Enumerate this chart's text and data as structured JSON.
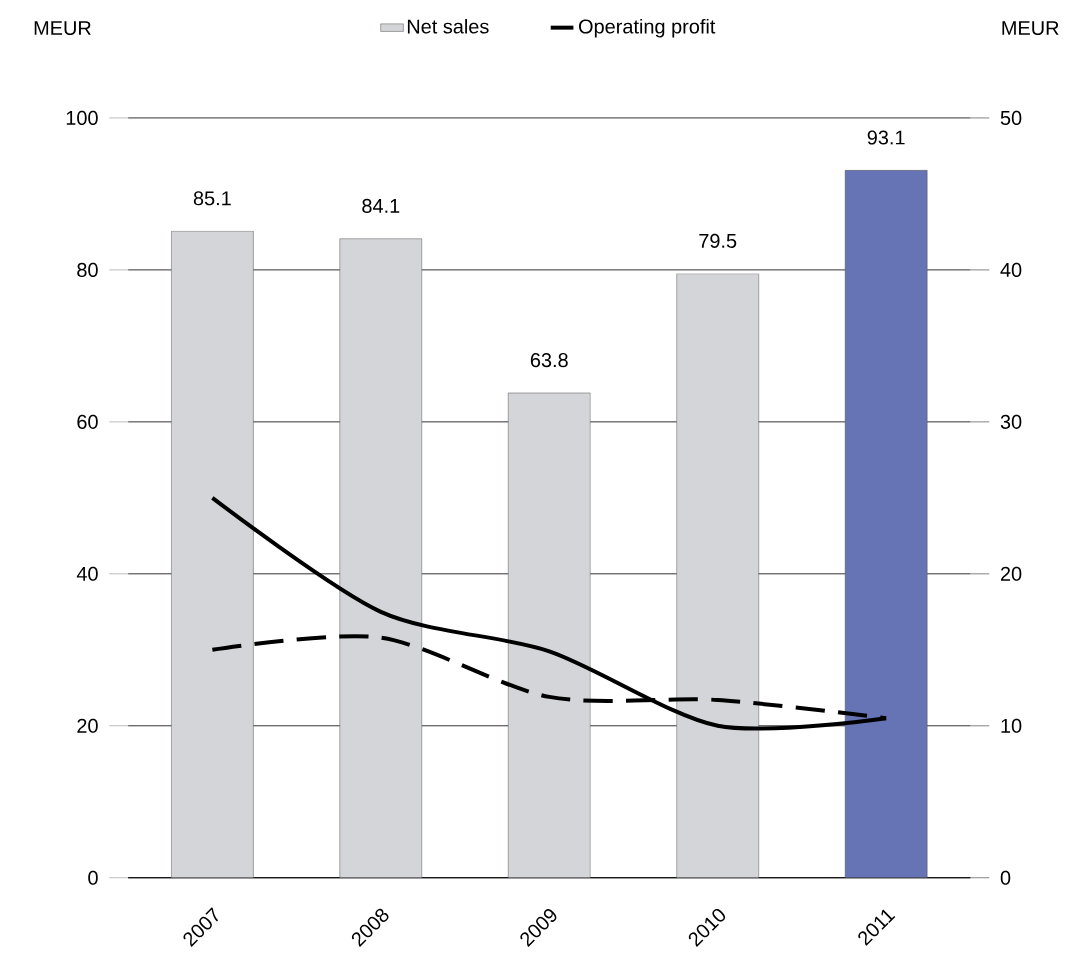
{
  "chart_data": {
    "type": "bar",
    "ylabel": "MEUR",
    "y2label": "MEUR",
    "categories": [
      "2007",
      "2008",
      "2009",
      "2010",
      "2011"
    ],
    "series": [
      {
        "name": "Net sales",
        "colors": [
          "#d4d5d8",
          "#d4d5d8",
          "#d4d5d8",
          "#d4d5d8",
          "#6673b5"
        ],
        "values": [
          85.1,
          84.1,
          63.8,
          79.5,
          93.1
        ],
        "value_labels": [
          "85.1",
          "84.1",
          "63.8",
          "79.5",
          "93.1"
        ]
      },
      {
        "name": "Operating profit",
        "type": "line",
        "axis": "y2",
        "color": "#000000",
        "line_style": "solid",
        "values": [
          25.0,
          17.5,
          14.9,
          10.0,
          10.5
        ]
      },
      {
        "type": "line",
        "axis": "y2",
        "color": "#000000",
        "line_style": "dashed",
        "values": [
          15.0,
          15.8,
          11.9,
          11.7,
          10.5
        ]
      }
    ],
    "ylim": [
      0,
      100
    ],
    "yticks": [
      0,
      20,
      40,
      60,
      80,
      100
    ],
    "y2lim": [
      0,
      50
    ],
    "y2ticks": [
      0,
      10,
      20,
      30,
      40,
      50
    ],
    "grid": "y",
    "legend": "top"
  }
}
